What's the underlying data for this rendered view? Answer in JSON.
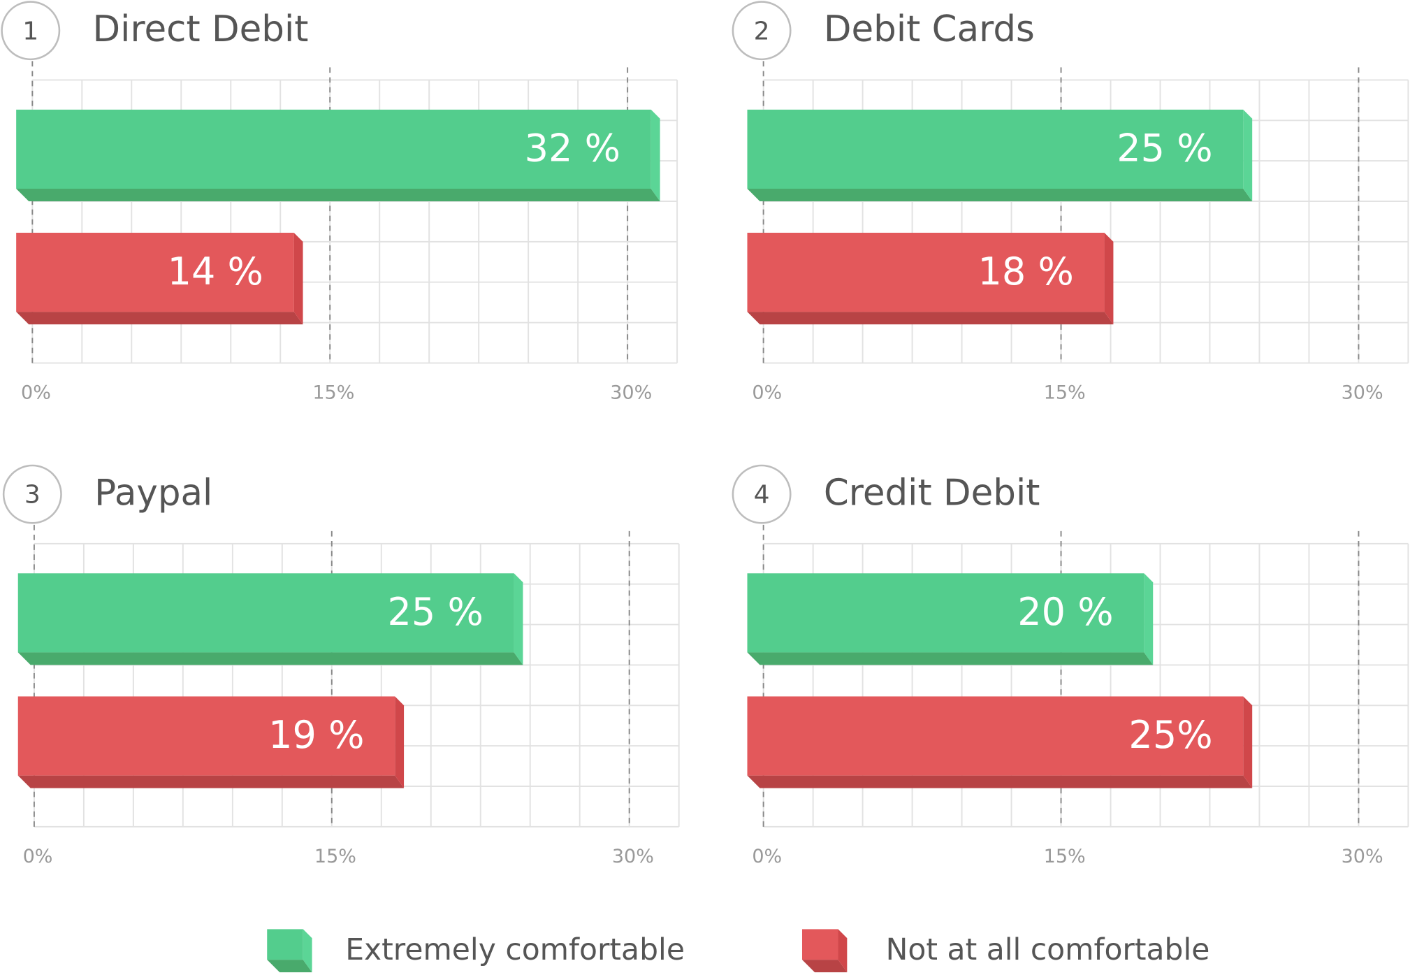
{
  "chart_data": [
    {
      "type": "bar",
      "number": "1",
      "title": "Direct Debit",
      "values": [
        32,
        14
      ],
      "value_labels": [
        "32 %",
        "14 %"
      ],
      "xlim": [
        0,
        32.5
      ],
      "xticks": [
        {
          "value": 0,
          "label": "0%"
        },
        {
          "value": 15,
          "label": "15%"
        },
        {
          "value": 30,
          "label": "30%"
        }
      ],
      "minor_xticks": [
        0,
        2.5,
        5,
        7.5,
        10,
        12.5,
        15,
        17.5,
        20,
        22.5,
        25,
        27.5,
        30,
        32.5
      ],
      "grid": true
    },
    {
      "type": "bar",
      "number": "2",
      "title": "Debit Cards",
      "values": [
        25,
        18
      ],
      "value_labels": [
        "25 %",
        "18 %"
      ],
      "xlim": [
        0,
        32.5
      ],
      "xticks": [
        {
          "value": 0,
          "label": "0%"
        },
        {
          "value": 15,
          "label": "15%"
        },
        {
          "value": 30,
          "label": "30%"
        }
      ],
      "minor_xticks": [
        0,
        2.5,
        5,
        7.5,
        10,
        12.5,
        15,
        17.5,
        20,
        22.5,
        25,
        27.5,
        30,
        32.5
      ],
      "grid": true
    },
    {
      "type": "bar",
      "number": "3",
      "title": "Paypal",
      "values": [
        25,
        19
      ],
      "value_labels": [
        "25 %",
        "19 %"
      ],
      "xlim": [
        0,
        32.5
      ],
      "xticks": [
        {
          "value": 0,
          "label": "0%"
        },
        {
          "value": 15,
          "label": "15%"
        },
        {
          "value": 30,
          "label": "30%"
        }
      ],
      "minor_xticks": [
        0,
        2.5,
        5,
        7.5,
        10,
        12.5,
        15,
        17.5,
        20,
        22.5,
        25,
        27.5,
        30,
        32.5
      ],
      "grid": true
    },
    {
      "type": "bar",
      "number": "4",
      "title": "Credit Debit",
      "values": [
        20,
        25
      ],
      "value_labels": [
        "20 %",
        "25%"
      ],
      "xlim": [
        0,
        32.5
      ],
      "xticks": [
        {
          "value": 0,
          "label": "0%"
        },
        {
          "value": 15,
          "label": "15%"
        },
        {
          "value": 30,
          "label": "30%"
        }
      ],
      "minor_xticks": [
        0,
        2.5,
        5,
        7.5,
        10,
        12.5,
        15,
        17.5,
        20,
        22.5,
        25,
        27.5,
        30,
        32.5
      ],
      "grid": true
    }
  ],
  "legend": [
    {
      "name": "Extremely comfortable",
      "color": "#53cd8d",
      "side_color": "#5bd596",
      "bottom_color": "#49aa6c"
    },
    {
      "name": "Not at all comfortable",
      "color": "#e3585b",
      "side_color": "#d0474a",
      "bottom_color": "#b84345"
    }
  ]
}
